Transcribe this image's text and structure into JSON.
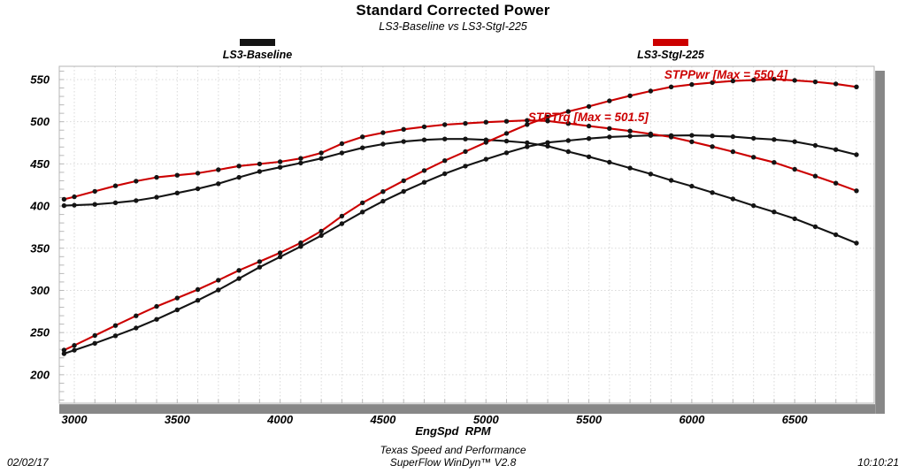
{
  "header": {
    "title": "Standard Corrected Power",
    "subtitle": "LS3-Baseline vs LS3-StgI-225"
  },
  "legend": [
    {
      "label": "LS3-Baseline",
      "color": "#141414"
    },
    {
      "label": "LS3-StgI-225",
      "color": "#cc0000"
    }
  ],
  "footer": {
    "date": "02/02/17",
    "org": "Texas Speed and Performance",
    "app": "SuperFlow WinDyn™ V2.8",
    "time": "10:10:21"
  },
  "colors": {
    "red": "#cc0000",
    "black": "#141414",
    "grid": "#d9d9d9",
    "frame": "#b4b4b4",
    "scrollbar": "#878787"
  },
  "chart_data": {
    "type": "line",
    "title": "Standard Corrected Power",
    "subtitle": "LS3-Baseline vs LS3-StgI-225",
    "xlabel": "EngSpd  RPM",
    "ylabel": "",
    "xlim": [
      2927,
      6886
    ],
    "ylim": [
      166.3,
      565.7
    ],
    "x_ticks": [
      3000,
      3500,
      4000,
      4500,
      5000,
      5500,
      6000,
      6500
    ],
    "y_ticks": [
      200,
      250,
      300,
      350,
      400,
      450,
      500,
      550
    ],
    "grid": "dotted; vertical every 100 RPM, horizontal every 50",
    "legend_position": "top",
    "x": [
      2950,
      3000,
      3100,
      3200,
      3300,
      3400,
      3500,
      3600,
      3700,
      3800,
      3900,
      4000,
      4100,
      4200,
      4300,
      4400,
      4500,
      4600,
      4700,
      4800,
      4900,
      5000,
      5100,
      5200,
      5300,
      5400,
      5500,
      5600,
      5700,
      5800,
      5900,
      6000,
      6100,
      6200,
      6300,
      6400,
      6500,
      6600,
      6700,
      6800
    ],
    "series": [
      {
        "id": "baseline-torque",
        "name": "STPTrq LS3-Baseline",
        "color": "#141414",
        "values": [
          400.5,
          401,
          402,
          404,
          406.5,
          410.5,
          415.5,
          420.5,
          426.5,
          434,
          441,
          446,
          451,
          456.5,
          463,
          469,
          473.5,
          476.5,
          478.5,
          479.5,
          479.5,
          478.5,
          477,
          475,
          471,
          464.5,
          458.5,
          452,
          445,
          438,
          430.5,
          423.5,
          416,
          408.5,
          400.5,
          393,
          385,
          375.5,
          366,
          356
        ]
      },
      {
        "id": "baseline-power",
        "name": "STPPwr LS3-Baseline",
        "color": "#141414",
        "values": [
          225,
          229.1,
          237.3,
          246.2,
          255.4,
          265.7,
          276.9,
          288.2,
          300.5,
          314,
          327.5,
          339.7,
          352.1,
          365.1,
          379.1,
          392.9,
          405.7,
          417.4,
          428.2,
          438.3,
          447.4,
          455.5,
          463.2,
          470.3,
          475.3,
          477.6,
          480.1,
          481.9,
          482.9,
          483.7,
          483.6,
          483.8,
          483.2,
          482.3,
          480.4,
          478.9,
          476.4,
          471.9,
          466.9,
          460.9
        ]
      },
      {
        "id": "stg225-torque",
        "name": "STPTrq LS3-StgI-225",
        "color": "#cc0000",
        "max": 501.5,
        "values": [
          408,
          411,
          417.5,
          424,
          429.5,
          434,
          436.5,
          439,
          443,
          447.5,
          450,
          452.5,
          456.5,
          463,
          474,
          482,
          487,
          491,
          494,
          496.5,
          498,
          499.5,
          500.5,
          501.5,
          500.9,
          497.9,
          494.8,
          492,
          489,
          485.5,
          481.8,
          476.3,
          470.5,
          464.4,
          457.9,
          451.7,
          443.6,
          435.5,
          427.1,
          418.1
        ]
      },
      {
        "id": "stg225-power",
        "name": "STPPwr LS3-StgI-225",
        "color": "#cc0000",
        "max": 550.4,
        "values": [
          229.2,
          234.8,
          246.5,
          258.3,
          269.9,
          281,
          290.9,
          301,
          312.1,
          323.8,
          334.1,
          344.6,
          356.4,
          370.3,
          388.1,
          403.8,
          417.2,
          430,
          442.1,
          453.8,
          464.6,
          475.5,
          486.1,
          496.6,
          505.5,
          512.1,
          518.1,
          524.7,
          530.8,
          536.3,
          541.3,
          544.1,
          546.4,
          548.3,
          549.3,
          550.4,
          549,
          547.2,
          544.8,
          541.3
        ]
      }
    ],
    "annotations": [
      {
        "text": "STPTrq [Max = 501.5]",
        "x": 5205,
        "y": 500.7,
        "anchor": "start",
        "color": "#cc0000"
      },
      {
        "text": "STPPwr [Max = 550.4]",
        "x": 6465,
        "y": 551.2,
        "anchor": "end",
        "color": "#cc0000"
      }
    ]
  }
}
